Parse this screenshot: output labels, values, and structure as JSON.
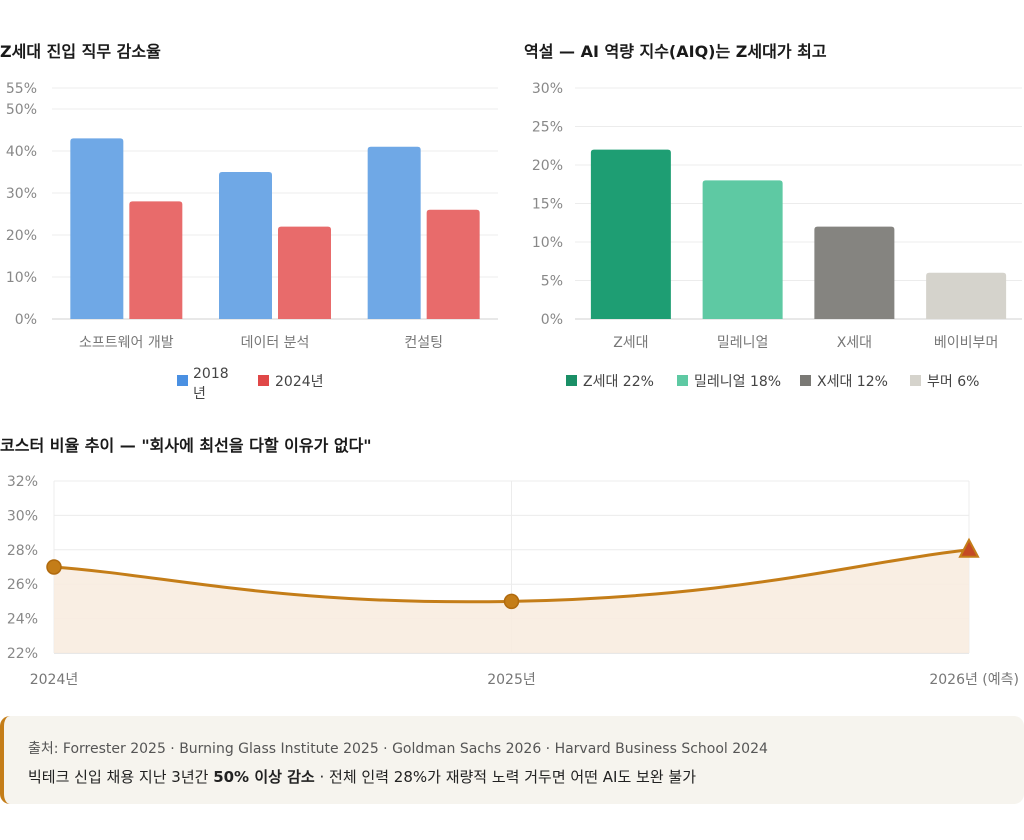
{
  "chart_data": [
    {
      "type": "bar",
      "title": "Z세대 진입 직무 감소율",
      "categories": [
        "소프트웨어 개발",
        "데이터 분석",
        "컨설팅"
      ],
      "series": [
        {
          "name": "2018년",
          "values": [
            43,
            35,
            41
          ],
          "color": "#6fa8e6"
        },
        {
          "name": "2024년",
          "values": [
            28,
            22,
            26
          ],
          "color": "#e86b6b"
        }
      ],
      "legend_colors": [
        "#4a90e2",
        "#e04848"
      ],
      "ylim": [
        0,
        55
      ],
      "yticks": [
        "0%",
        "10%",
        "20%",
        "30%",
        "40%",
        "50%",
        "55%"
      ],
      "legend": "bottom",
      "grid": true
    },
    {
      "type": "bar",
      "title": "역설 — AI 역량 지수(AIQ)는 Z세대가 최고",
      "categories": [
        "Z세대",
        "밀레니얼",
        "X세대",
        "베이비부머"
      ],
      "values": [
        22,
        18,
        12,
        6
      ],
      "colors": [
        "#1e9e73",
        "#5ec9a3",
        "#858480",
        "#d5d3cc"
      ],
      "legend_entries": [
        "Z세대 22%",
        "밀레니얼 18%",
        "X세대 12%",
        "부머 6%"
      ],
      "legend_colors": [
        "#1a8f66",
        "#5ec9a3",
        "#7a7975",
        "#d5d3cc"
      ],
      "ylim": [
        0,
        30
      ],
      "yticks": [
        "0%",
        "5%",
        "10%",
        "15%",
        "20%",
        "25%",
        "30%"
      ],
      "legend": "bottom",
      "grid": true
    },
    {
      "type": "area",
      "title": "코스터 비율 추이 — \"회사에 최선을 다할 이유가 없다\"",
      "x": [
        "2024년",
        "2025년",
        "2026년 (예측)"
      ],
      "values": [
        27,
        25,
        28
      ],
      "color": "#c47d18",
      "fill": "#f8ece0",
      "ylim": [
        22,
        32
      ],
      "yticks": [
        "22%",
        "24%",
        "26%",
        "28%",
        "30%",
        "32%"
      ],
      "grid": true
    }
  ],
  "footer": {
    "sources": "출처: Forrester 2025 · Burning Glass Institute 2025 · Goldman Sachs 2026 · Harvard Business School 2024",
    "summary_pre": "빅테크 신입 채용 지난 3년간 ",
    "summary_bold": "50% 이상 감소",
    "summary_post": " · 전체 인력 28%가 재량적 노력 거두면 어떤 AI도 보완 불가"
  }
}
